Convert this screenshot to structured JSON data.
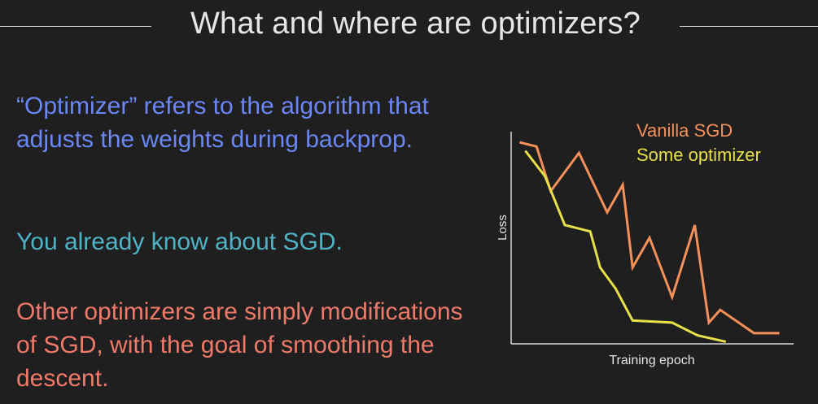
{
  "slide": {
    "title": "What and where are optimizers?",
    "paragraphs": [
      "“Optimizer” refers to the algorithm that adjusts the weights during backprop.",
      "You already know about SGD.",
      "Other optimizers are simply modifications of SGD, with the goal of smoothing the descent."
    ]
  },
  "colors": {
    "background": "#1f1f1f",
    "title": "#e6e6e6",
    "para1": "#6b86f5",
    "para2": "#4fb3c6",
    "para3": "#f07a6a",
    "vanilla": "#f5905a",
    "optimizer": "#e8e04a",
    "axis": "#d8d8d8"
  },
  "chart_data": {
    "type": "line",
    "title": "",
    "xlabel": "Training epoch",
    "ylabel": "Loss",
    "xlim": [
      0,
      10
    ],
    "ylim": [
      0,
      10
    ],
    "grid": false,
    "legend": "top-right",
    "series": [
      {
        "name": "Vanilla SGD",
        "color": "#f5905a",
        "x": [
          0.3,
          0.9,
          1.4,
          2.4,
          3.4,
          3.95,
          4.3,
          4.9,
          5.7,
          6.5,
          7.0,
          7.4,
          8.6,
          9.0,
          9.5
        ],
        "y": [
          9.5,
          9.3,
          7.2,
          9.0,
          6.2,
          7.5,
          3.6,
          5.0,
          2.2,
          5.6,
          1.0,
          1.6,
          0.5,
          0.5,
          0.5
        ]
      },
      {
        "name": "Some optimizer",
        "color": "#e8e04a",
        "x": [
          0.5,
          1.2,
          1.9,
          2.8,
          3.15,
          3.7,
          4.3,
          5.7,
          6.6,
          7.6
        ],
        "y": [
          9.1,
          7.9,
          5.6,
          5.3,
          3.6,
          2.6,
          1.1,
          1.0,
          0.4,
          0.1
        ]
      }
    ]
  }
}
